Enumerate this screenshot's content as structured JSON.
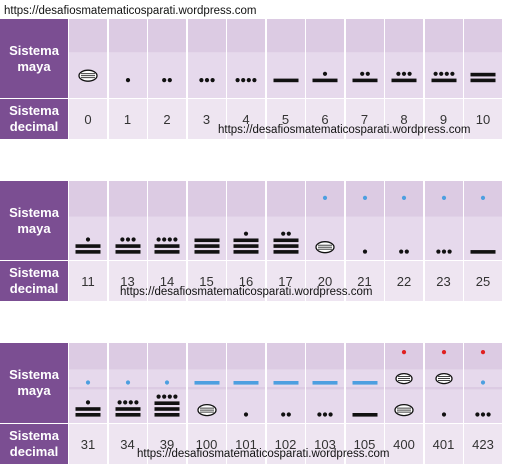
{
  "watermark": "https://desafiosmatematicosparati.wordpress.com",
  "labels": {
    "maya": "Sistema maya",
    "decimal": "Sistema decimal"
  },
  "colors": {
    "header": "#7b4e92",
    "cell": "#dccbe3",
    "number_cell": "#eee5f1",
    "upper_level_dot": "#4d9fe0",
    "upper_level_bar": "#4d9fe0",
    "third_level_dot": "#e02020",
    "glyph": "#111111"
  },
  "tables": [
    {
      "columns": [
        {
          "decimal": "0",
          "levels": [
            {
              "shell": 1
            }
          ]
        },
        {
          "decimal": "1",
          "levels": [
            {
              "dots": 1,
              "bars": 0
            }
          ]
        },
        {
          "decimal": "2",
          "levels": [
            {
              "dots": 2,
              "bars": 0
            }
          ]
        },
        {
          "decimal": "3",
          "levels": [
            {
              "dots": 3,
              "bars": 0
            }
          ]
        },
        {
          "decimal": "4",
          "levels": [
            {
              "dots": 4,
              "bars": 0
            }
          ]
        },
        {
          "decimal": "5",
          "levels": [
            {
              "dots": 0,
              "bars": 1
            }
          ]
        },
        {
          "decimal": "6",
          "levels": [
            {
              "dots": 1,
              "bars": 1
            }
          ]
        },
        {
          "decimal": "7",
          "levels": [
            {
              "dots": 2,
              "bars": 1
            }
          ]
        },
        {
          "decimal": "8",
          "levels": [
            {
              "dots": 3,
              "bars": 1
            }
          ]
        },
        {
          "decimal": "9",
          "levels": [
            {
              "dots": 4,
              "bars": 1
            }
          ]
        },
        {
          "decimal": "10",
          "levels": [
            {
              "dots": 0,
              "bars": 2
            }
          ]
        }
      ]
    },
    {
      "columns": [
        {
          "decimal": "11",
          "levels": [
            {
              "dots": 1,
              "bars": 2
            }
          ]
        },
        {
          "decimal": "13",
          "levels": [
            {
              "dots": 3,
              "bars": 2
            }
          ]
        },
        {
          "decimal": "14",
          "levels": [
            {
              "dots": 4,
              "bars": 2
            }
          ]
        },
        {
          "decimal": "15",
          "levels": [
            {
              "dots": 0,
              "bars": 3
            }
          ]
        },
        {
          "decimal": "16",
          "levels": [
            {
              "dots": 1,
              "bars": 3
            }
          ]
        },
        {
          "decimal": "17",
          "levels": [
            {
              "dots": 2,
              "bars": 3
            }
          ]
        },
        {
          "decimal": "20",
          "levels": [
            {
              "shell": 1
            },
            {
              "dots": 1,
              "bars": 0
            }
          ]
        },
        {
          "decimal": "21",
          "levels": [
            {
              "dots": 1,
              "bars": 0
            },
            {
              "dots": 1,
              "bars": 0
            }
          ]
        },
        {
          "decimal": "22",
          "levels": [
            {
              "dots": 2,
              "bars": 0
            },
            {
              "dots": 1,
              "bars": 0
            }
          ]
        },
        {
          "decimal": "23",
          "levels": [
            {
              "dots": 3,
              "bars": 0
            },
            {
              "dots": 1,
              "bars": 0
            }
          ]
        },
        {
          "decimal": "25",
          "levels": [
            {
              "dots": 0,
              "bars": 1
            },
            {
              "dots": 1,
              "bars": 0
            }
          ]
        }
      ]
    },
    {
      "columns": [
        {
          "decimal": "31",
          "levels": [
            {
              "dots": 1,
              "bars": 2
            },
            {
              "dots": 1,
              "bars": 0
            }
          ]
        },
        {
          "decimal": "34",
          "levels": [
            {
              "dots": 4,
              "bars": 2
            },
            {
              "dots": 1,
              "bars": 0
            }
          ]
        },
        {
          "decimal": "39",
          "levels": [
            {
              "dots": 4,
              "bars": 3
            },
            {
              "dots": 1,
              "bars": 0
            }
          ]
        },
        {
          "decimal": "100",
          "levels": [
            {
              "shell": 1
            },
            {
              "dots": 0,
              "bars": 1
            }
          ]
        },
        {
          "decimal": "101",
          "levels": [
            {
              "dots": 1,
              "bars": 0
            },
            {
              "dots": 0,
              "bars": 1
            }
          ]
        },
        {
          "decimal": "102",
          "levels": [
            {
              "dots": 2,
              "bars": 0
            },
            {
              "dots": 0,
              "bars": 1
            }
          ]
        },
        {
          "decimal": "103",
          "levels": [
            {
              "dots": 3,
              "bars": 0
            },
            {
              "dots": 0,
              "bars": 1
            }
          ]
        },
        {
          "decimal": "105",
          "levels": [
            {
              "dots": 0,
              "bars": 1
            },
            {
              "dots": 0,
              "bars": 1
            }
          ]
        },
        {
          "decimal": "400",
          "levels": [
            {
              "shell": 1
            },
            {
              "shell": 1
            },
            {
              "dots": 1,
              "bars": 0
            }
          ]
        },
        {
          "decimal": "401",
          "levels": [
            {
              "dots": 1,
              "bars": 0
            },
            {
              "shell": 1
            },
            {
              "dots": 1,
              "bars": 0
            }
          ]
        },
        {
          "decimal": "423",
          "levels": [
            {
              "dots": 3,
              "bars": 0
            },
            {
              "dots": 1,
              "bars": 0
            },
            {
              "dots": 1,
              "bars": 0
            }
          ]
        }
      ]
    }
  ]
}
